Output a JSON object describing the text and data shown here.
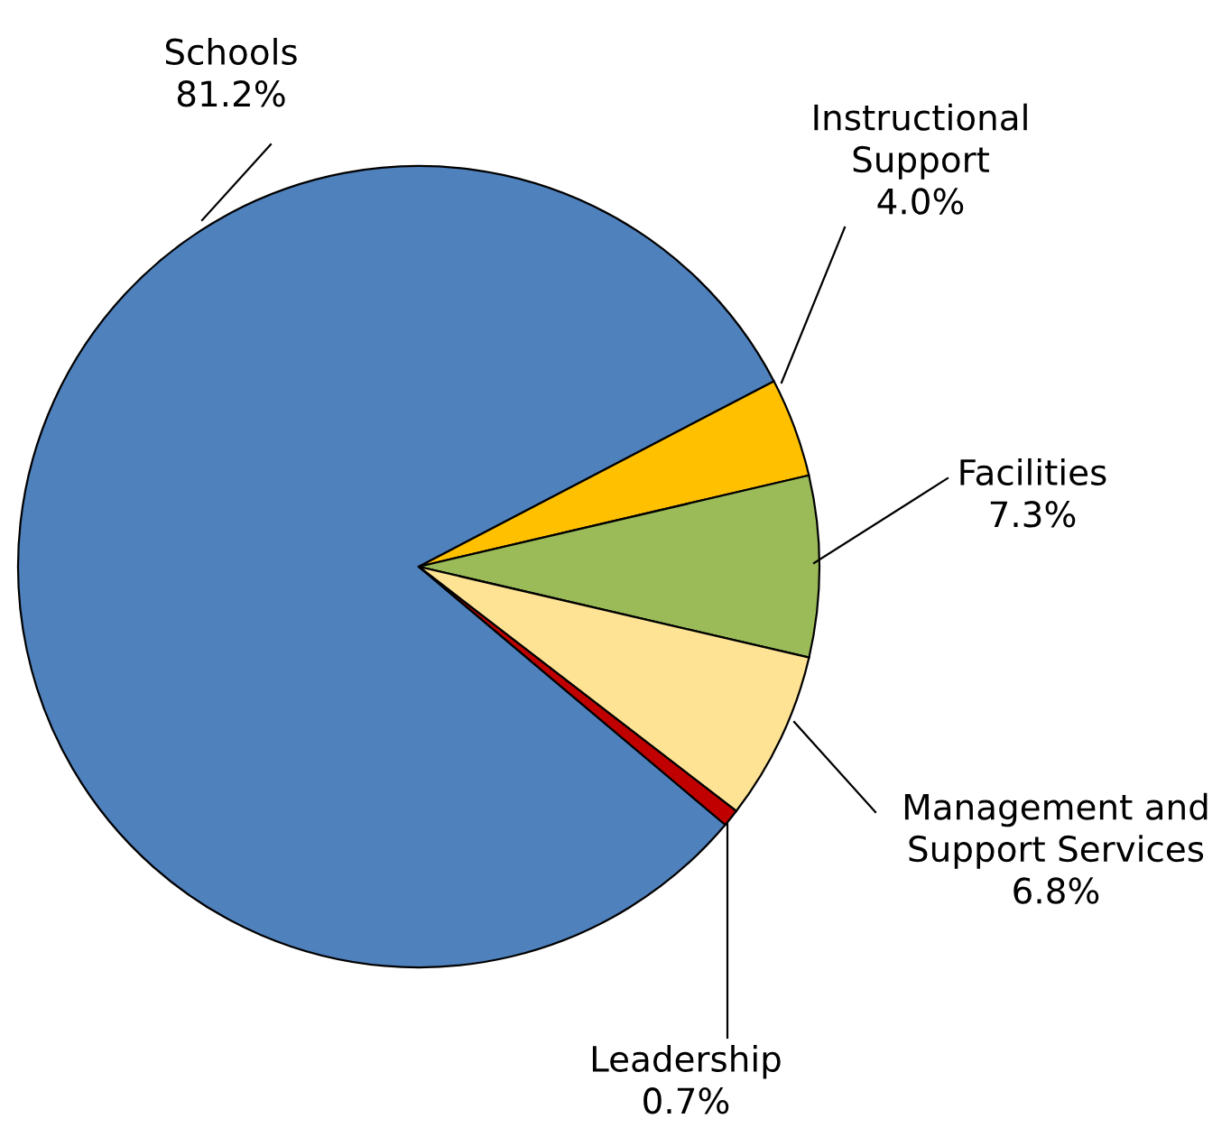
{
  "chart_data": {
    "type": "pie",
    "categories": [
      "Schools",
      "Instructional\nSupport",
      "Facilities",
      "Management and\nSupport Services",
      "Leadership"
    ],
    "values": [
      81.2,
      4.0,
      7.3,
      6.8,
      0.7
    ],
    "colors": [
      "#4f81bd",
      "#ffc000",
      "#9bbb59",
      "#fee394",
      "#c00000"
    ],
    "value_labels": [
      "81.2%",
      "4.0%",
      "7.3%",
      "6.8%",
      "0.7%"
    ],
    "legend": false
  }
}
